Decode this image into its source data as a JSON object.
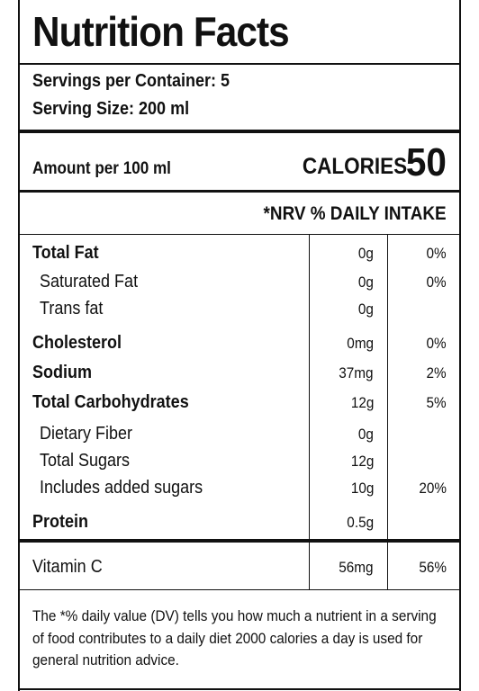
{
  "title": "Nutrition Facts",
  "servings_per_container": "Servings per Container: 5",
  "serving_size": "Serving Size: 200 ml",
  "amount_per": "Amount per 100 ml",
  "calories_label": "CALORIES",
  "calories_value": "50",
  "nrv_header": "*NRV % DAILY INTAKE",
  "nutrients": [
    {
      "name": "Total Fat",
      "amount": "0g",
      "dv": "0%"
    },
    {
      "name": "Saturated Fat",
      "amount": "0g",
      "dv": "0%"
    },
    {
      "name": "Trans fat",
      "amount": "0g",
      "dv": ""
    },
    {
      "name": "Cholesterol",
      "amount": "0mg",
      "dv": "0%"
    },
    {
      "name": "Sodium",
      "amount": "37mg",
      "dv": "2%"
    },
    {
      "name": "Total Carbohydrates",
      "amount": "12g",
      "dv": "5%"
    },
    {
      "name": "Dietary Fiber",
      "amount": "0g",
      "dv": ""
    },
    {
      "name": "Total Sugars",
      "amount": "12g",
      "dv": ""
    },
    {
      "name": "Includes added sugars",
      "amount": "10g",
      "dv": "20%"
    },
    {
      "name": "Protein",
      "amount": "0.5g",
      "dv": ""
    }
  ],
  "vitamins": [
    {
      "name": "Vitamin C",
      "amount": "56mg",
      "dv": "56%"
    }
  ],
  "footnote": [
    "The *% daily value (DV) tells you how much a nutrient in a serving",
    "of food contributes to a daily diet 2000 calories a day is used for",
    "general nutrition advice."
  ]
}
